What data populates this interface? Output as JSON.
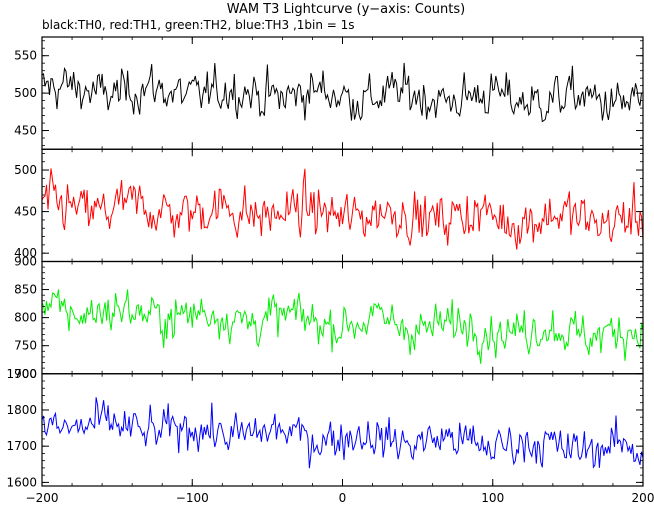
{
  "chart_data": {
    "type": "line",
    "title": "WAM T3 Lightcurve (y−axis: Counts)",
    "subtitle": "black:TH0, red:TH1, green:TH2, blue:TH3 ,1bin = 1s",
    "x_range": [
      -200,
      200
    ],
    "x_ticks": [
      -200,
      -100,
      0,
      100,
      200
    ],
    "x_tick_labels": [
      "−200",
      "−100",
      "0",
      "100",
      "200"
    ],
    "panels": [
      {
        "series": "TH0",
        "color": "#000000",
        "ylim": [
          425,
          575
        ],
        "yticks": [
          450,
          500,
          550
        ],
        "ytick_labels": [
          "450",
          "500",
          "550"
        ],
        "mean_start": 505,
        "mean_end": 490,
        "noise": 22
      },
      {
        "series": "TH1",
        "color": "#ff0000",
        "ylim": [
          390,
          525
        ],
        "yticks": [
          400,
          450,
          500
        ],
        "ytick_labels": [
          "400",
          "450",
          "500"
        ],
        "mean_start": 455,
        "mean_end": 440,
        "noise": 22
      },
      {
        "series": "TH2",
        "color": "#00ee00",
        "ylim": [
          700,
          900
        ],
        "yticks": [
          700,
          750,
          800,
          850,
          900
        ],
        "ytick_labels": [
          "700",
          "750",
          "800",
          "850",
          "900"
        ],
        "mean_start": 815,
        "mean_end": 770,
        "noise": 28
      },
      {
        "series": "TH3",
        "color": "#0000ff",
        "ylim": [
          1590,
          1900
        ],
        "yticks": [
          1600,
          1700,
          1800,
          1900
        ],
        "ytick_labels": [
          "1600",
          "1700",
          "1800",
          "1900"
        ],
        "mean_start": 1760,
        "mean_end": 1690,
        "noise": 42
      }
    ]
  }
}
